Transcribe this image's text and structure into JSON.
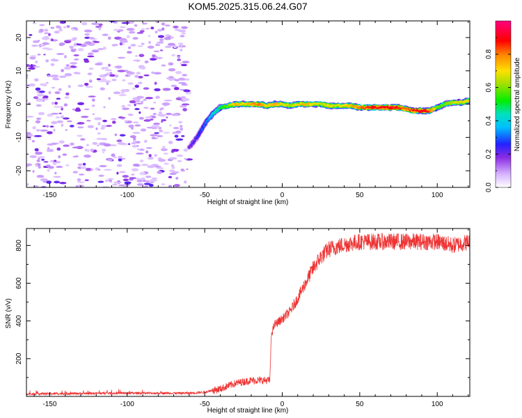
{
  "title": "KOM5.2025.315.06.24.G07",
  "chart_data": [
    {
      "type": "heatmap",
      "name": "spectrogram",
      "xlabel": "Height of straight line (km)",
      "ylabel": "Frequency (Hz)",
      "xlim": [
        -165,
        121
      ],
      "ylim": [
        -25,
        25
      ],
      "xticks": [
        -150,
        -100,
        -50,
        0,
        50,
        100
      ],
      "yticks": [
        -20,
        -10,
        0,
        10,
        20
      ],
      "ridge": {
        "description": "frequency of peak amplitude vs height",
        "x": [
          -60,
          -55,
          -50,
          -45,
          -40,
          -35,
          -30,
          -25,
          -20,
          -15,
          -10,
          -5,
          0,
          5,
          10,
          15,
          20,
          25,
          30,
          35,
          40,
          45,
          50,
          55,
          60,
          65,
          70,
          75,
          80,
          85,
          90,
          95,
          100,
          105,
          110,
          115,
          120
        ],
        "y": [
          -13,
          -10,
          -6,
          -3,
          -1,
          -0.5,
          0,
          0,
          0,
          0,
          -0.5,
          0,
          0,
          -0.5,
          0,
          0,
          0,
          0,
          -0.5,
          -0.5,
          -0.5,
          -0.5,
          -1,
          -1,
          -1,
          -1,
          -1,
          -1,
          -1.5,
          -2,
          -2,
          -2,
          -1,
          0,
          0.5,
          0.5,
          1
        ],
        "amplitude": [
          0.2,
          0.25,
          0.3,
          0.4,
          0.5,
          0.6,
          0.75,
          0.7,
          0.75,
          0.8,
          0.7,
          0.75,
          0.7,
          0.65,
          0.7,
          0.75,
          0.7,
          0.65,
          0.7,
          0.65,
          0.7,
          0.75,
          0.8,
          0.85,
          0.9,
          0.9,
          0.88,
          0.85,
          0.8,
          0.85,
          0.9,
          0.85,
          0.6,
          0.6,
          0.65,
          0.7,
          0.7
        ]
      },
      "noise_region_x": [
        -165,
        -60
      ],
      "colorbar": {
        "label": "Normalized spectral amplitude",
        "range": [
          0,
          1
        ],
        "ticks": [
          0.0,
          0.2,
          0.4,
          0.6,
          0.8
        ],
        "tick_labels": [
          "0.0",
          "0.2",
          "0.4",
          "0.6",
          "0.8"
        ]
      }
    },
    {
      "type": "line",
      "name": "snr",
      "xlabel": "Height of straight line (km)",
      "ylabel": "SNR (v/v)",
      "xlim": [
        -165,
        121
      ],
      "ylim": [
        0,
        890
      ],
      "xticks": [
        -150,
        -100,
        -50,
        0,
        50,
        100
      ],
      "yticks": [
        200,
        400,
        600,
        800
      ],
      "color": "#ee3333",
      "trend": {
        "x": [
          -165,
          -150,
          -100,
          -60,
          -50,
          -40,
          -30,
          -20,
          -10,
          -8,
          -7,
          -5,
          0,
          5,
          10,
          15,
          20,
          25,
          30,
          40,
          50,
          60,
          80,
          100,
          110,
          121
        ],
        "y": [
          10,
          12,
          15,
          15,
          20,
          40,
          70,
          85,
          85,
          85,
          330,
          380,
          410,
          450,
          520,
          600,
          680,
          740,
          780,
          805,
          820,
          820,
          820,
          820,
          800,
          820
        ]
      }
    }
  ]
}
